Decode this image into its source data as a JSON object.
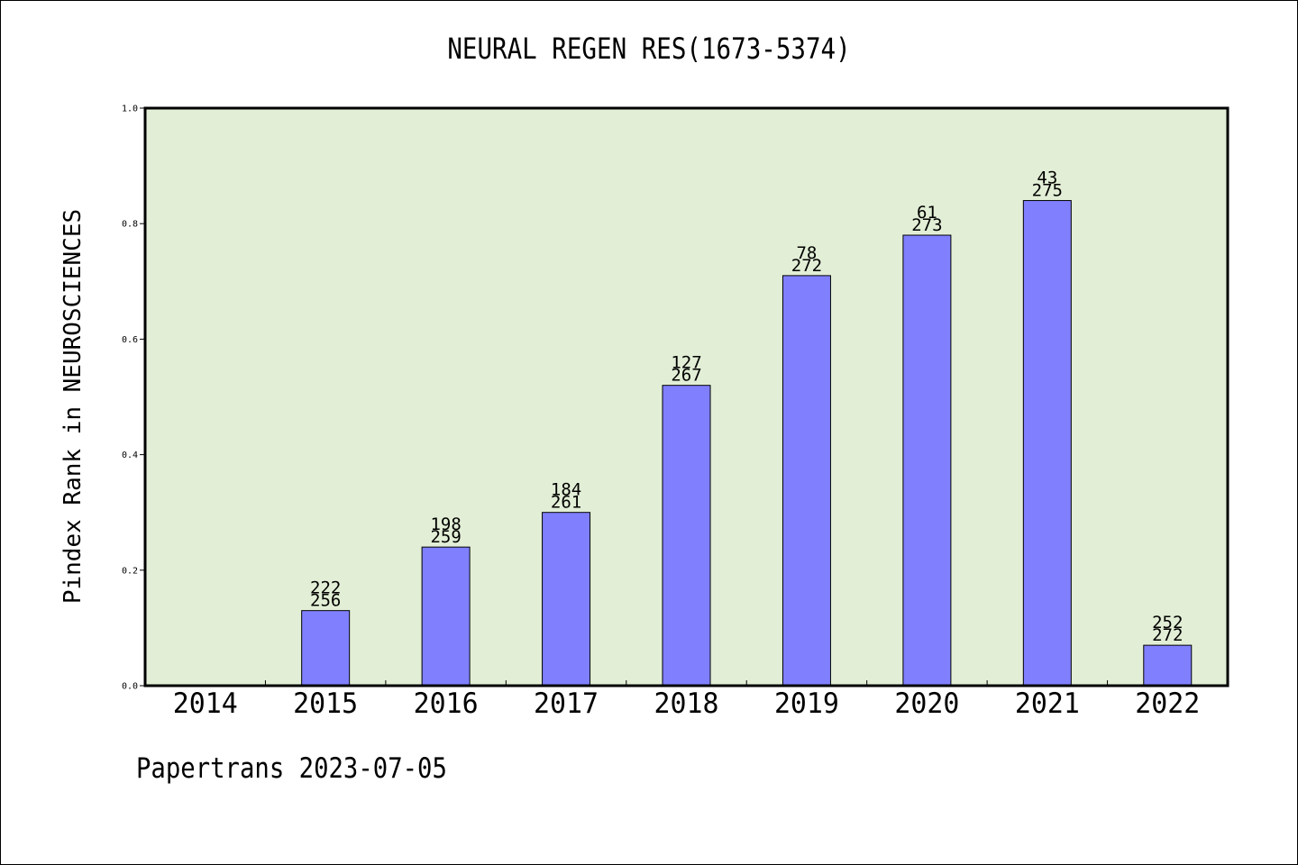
{
  "chart_data": {
    "type": "bar",
    "title": "NEURAL REGEN RES(1673-5374)",
    "ylabel": "Pindex Rank in NEUROSCIENCES",
    "xlabel": "",
    "ylim": [
      0.0,
      1.0
    ],
    "yticks": [
      "0.0",
      "0.2",
      "0.4",
      "0.6",
      "0.8",
      "1.0"
    ],
    "grid": false,
    "legend": "none",
    "categories": [
      "2014",
      "2015",
      "2016",
      "2017",
      "2018",
      "2019",
      "2020",
      "2021",
      "2022"
    ],
    "values": [
      null,
      0.13,
      0.24,
      0.3,
      0.52,
      0.71,
      0.78,
      0.84,
      0.07
    ],
    "rank_labels": [
      "",
      "222",
      "198",
      "184",
      "127",
      "78",
      "61",
      "43",
      "252"
    ],
    "total_labels": [
      "",
      "256",
      "259",
      "261",
      "267",
      "272",
      "273",
      "275",
      "272"
    ],
    "colors": {
      "plot_background": "#e2efd6",
      "bar_fill": "#8080ff",
      "bar_stroke": "#000000"
    }
  },
  "footer": {
    "text": "Papertrans 2023-07-05"
  }
}
